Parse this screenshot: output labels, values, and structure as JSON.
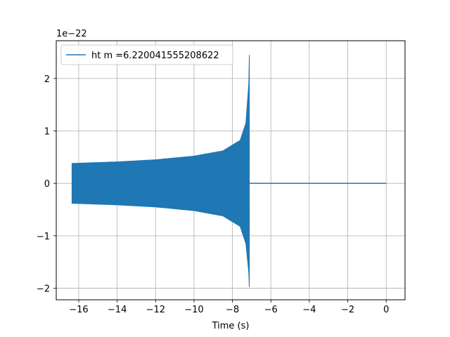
{
  "chart_data": {
    "type": "line",
    "title": "",
    "xlabel": "Time (s)",
    "ylabel": "",
    "xlim": [
      -17.17,
      0.98
    ],
    "ylim": [
      -2.22,
      2.72
    ],
    "y_scale_label": "1e−22",
    "xticks": [
      -16,
      -14,
      -12,
      -10,
      -8,
      -6,
      -4,
      -2,
      0
    ],
    "xtick_labels": [
      "−16",
      "−14",
      "−12",
      "−10",
      "−8",
      "−6",
      "−4",
      "−2",
      "0"
    ],
    "yticks": [
      -2,
      -1,
      0,
      1,
      2
    ],
    "ytick_labels": [
      "−2",
      "−1",
      "0",
      "1",
      "2"
    ],
    "grid": true,
    "legend": {
      "position": "top-left"
    },
    "series": [
      {
        "name": "ht m =6.220041555208622",
        "color": "#1f77b4",
        "chirp_start": -16.35,
        "merger_time": -7.1,
        "end_time": 0.0,
        "envelope_upper": [
          [
            -16.35,
            0.38
          ],
          [
            -14,
            0.41
          ],
          [
            -12,
            0.45
          ],
          [
            -10,
            0.52
          ],
          [
            -8.5,
            0.62
          ],
          [
            -7.6,
            0.82
          ],
          [
            -7.3,
            1.15
          ],
          [
            -7.15,
            1.9
          ],
          [
            -7.12,
            2.45
          ]
        ],
        "envelope_lower": [
          [
            -16.35,
            -0.38
          ],
          [
            -14,
            -0.41
          ],
          [
            -12,
            -0.45
          ],
          [
            -10,
            -0.52
          ],
          [
            -8.5,
            -0.62
          ],
          [
            -7.6,
            -0.82
          ],
          [
            -7.3,
            -1.15
          ],
          [
            -7.15,
            -1.7
          ],
          [
            -7.12,
            -1.98
          ]
        ],
        "post_merger_value": 0.0
      }
    ]
  }
}
